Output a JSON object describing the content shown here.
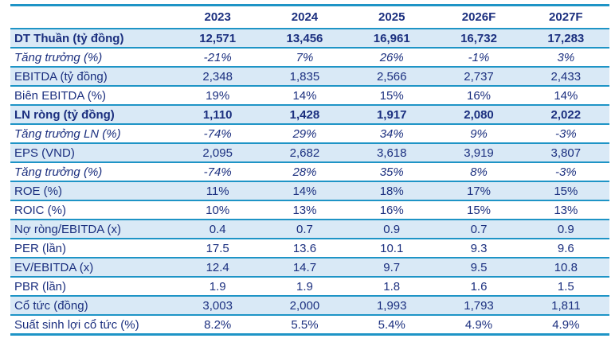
{
  "colors": {
    "rule_blue": "#1e94c6",
    "row_shade_blue": "#d9e9f6",
    "text_navy": "#1b2f7f",
    "background": "#ffffff"
  },
  "chart_data": {
    "type": "table",
    "title": "",
    "columns": [
      "",
      "2023",
      "2024",
      "2025",
      "2026F",
      "2027F"
    ],
    "rows": [
      {
        "label": "DT Thuần (tỷ đồng)",
        "emphasis": "bold",
        "shaded": true,
        "values": [
          "12,571",
          "13,456",
          "16,961",
          "16,732",
          "17,283"
        ]
      },
      {
        "label": "Tăng trưởng (%)",
        "emphasis": "italic",
        "shaded": false,
        "values": [
          "-21%",
          "7%",
          "26%",
          "-1%",
          "3%"
        ]
      },
      {
        "label": "EBITDA (tỷ đồng)",
        "emphasis": "regular",
        "shaded": true,
        "values": [
          "2,348",
          "1,835",
          "2,566",
          "2,737",
          "2,433"
        ]
      },
      {
        "label": "Biên EBITDA (%)",
        "emphasis": "regular",
        "shaded": false,
        "values": [
          "19%",
          "14%",
          "15%",
          "16%",
          "14%"
        ]
      },
      {
        "label": "LN ròng (tỷ đồng)",
        "emphasis": "bold",
        "shaded": true,
        "values": [
          "1,110",
          "1,428",
          "1,917",
          "2,080",
          "2,022"
        ]
      },
      {
        "label": "Tăng trưởng LN (%)",
        "emphasis": "italic",
        "shaded": false,
        "values": [
          "-74%",
          "29%",
          "34%",
          "9%",
          "-3%"
        ]
      },
      {
        "label": "EPS (VND)",
        "emphasis": "regular",
        "shaded": true,
        "values": [
          "2,095",
          "2,682",
          "3,618",
          "3,919",
          "3,807"
        ]
      },
      {
        "label": "Tăng trưởng (%)",
        "emphasis": "italic",
        "shaded": false,
        "values": [
          "-74%",
          "28%",
          "35%",
          "8%",
          "-3%"
        ]
      },
      {
        "label": "ROE (%)",
        "emphasis": "regular",
        "shaded": true,
        "values": [
          "11%",
          "14%",
          "18%",
          "17%",
          "15%"
        ]
      },
      {
        "label": "ROIC (%)",
        "emphasis": "regular",
        "shaded": false,
        "values": [
          "10%",
          "13%",
          "16%",
          "15%",
          "13%"
        ]
      },
      {
        "label": "Nợ ròng/EBITDA (x)",
        "emphasis": "regular",
        "shaded": true,
        "values": [
          "0.4",
          "0.7",
          "0.9",
          "0.7",
          "0.9"
        ]
      },
      {
        "label": "PER (lần)",
        "emphasis": "regular",
        "shaded": false,
        "values": [
          "17.5",
          "13.6",
          "10.1",
          "9.3",
          "9.6"
        ]
      },
      {
        "label": "EV/EBITDA (x)",
        "emphasis": "regular",
        "shaded": true,
        "values": [
          "12.4",
          "14.7",
          "9.7",
          "9.5",
          "10.8"
        ]
      },
      {
        "label": "PBR (lần)",
        "emphasis": "regular",
        "shaded": false,
        "values": [
          "1.9",
          "1.9",
          "1.8",
          "1.6",
          "1.5"
        ]
      },
      {
        "label": "Cổ tức (đồng)",
        "emphasis": "regular",
        "shaded": true,
        "values": [
          "3,003",
          "2,000",
          "1,993",
          "1,793",
          "1,811"
        ]
      },
      {
        "label": "Suất sinh lợi cổ tức (%)",
        "emphasis": "regular",
        "shaded": false,
        "values": [
          "8.2%",
          "5.5%",
          "5.4%",
          "4.9%",
          "4.9%"
        ]
      }
    ]
  }
}
